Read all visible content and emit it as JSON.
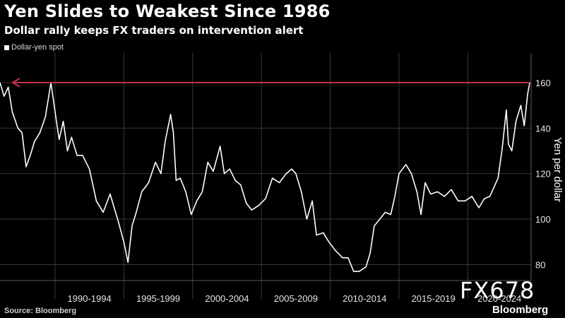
{
  "header": {
    "title": "Yen Slides to Weakest Since 1986",
    "subtitle": "Dollar rally keeps FX traders on intervention alert"
  },
  "footer": {
    "source": "Source: Bloomberg",
    "brand": "Bloomberg",
    "watermark": "FX678"
  },
  "colors": {
    "background": "#000000",
    "line": "#ffffff",
    "grid": "#3a3a3a",
    "reference_line": "#c8324a",
    "text": "#ffffff"
  },
  "chart_data": {
    "type": "line",
    "title": "Yen Slides to Weakest Since 1986",
    "subtitle": "Dollar rally keeps FX traders on intervention alert",
    "ylabel": "Yen per dollar",
    "xlabel": "",
    "ylim": [
      73,
      173
    ],
    "xlim": [
      1986.0,
      2024.6
    ],
    "yticks": [
      80,
      100,
      120,
      140,
      160
    ],
    "grid": true,
    "legend_position": "top-left",
    "categories": [
      "1990-1994",
      "1995-1999",
      "2000-2004",
      "2005-2009",
      "2010-2014",
      "2015-2019",
      "2020-2024"
    ],
    "category_spans": [
      [
        1990,
        1995
      ],
      [
        1995,
        2000
      ],
      [
        2000,
        2005
      ],
      [
        2005,
        2010
      ],
      [
        2010,
        2015
      ],
      [
        2015,
        2020
      ],
      [
        2020,
        2024.6
      ]
    ],
    "series": [
      {
        "name": "Dollar-yen spot",
        "x": [
          1986.0,
          1986.3,
          1986.6,
          1986.9,
          1987.3,
          1987.6,
          1987.9,
          1988.2,
          1988.5,
          1988.9,
          1989.3,
          1989.7,
          1990.1,
          1990.3,
          1990.6,
          1990.9,
          1991.2,
          1991.6,
          1992.0,
          1992.5,
          1993.0,
          1993.5,
          1994.0,
          1994.6,
          1995.0,
          1995.3,
          1995.6,
          1995.9,
          1996.3,
          1996.8,
          1997.3,
          1997.7,
          1998.0,
          1998.4,
          1998.6,
          1998.8,
          1999.1,
          1999.5,
          1999.9,
          2000.3,
          2000.7,
          2001.1,
          2001.5,
          2002.0,
          2002.3,
          2002.7,
          2003.1,
          2003.5,
          2003.9,
          2004.3,
          2004.8,
          2005.3,
          2005.8,
          2006.3,
          2006.8,
          2007.2,
          2007.5,
          2007.9,
          2008.3,
          2008.7,
          2009.0,
          2009.5,
          2009.9,
          2010.4,
          2010.9,
          2011.3,
          2011.7,
          2012.1,
          2012.6,
          2012.9,
          2013.2,
          2013.6,
          2014.0,
          2014.4,
          2014.7,
          2015.0,
          2015.5,
          2015.9,
          2016.3,
          2016.6,
          2016.9,
          2017.3,
          2017.8,
          2018.3,
          2018.8,
          2019.3,
          2019.8,
          2020.3,
          2020.8,
          2021.2,
          2021.6,
          2021.9,
          2022.2,
          2022.5,
          2022.8,
          2022.95,
          2023.2,
          2023.5,
          2023.85,
          2024.1,
          2024.35,
          2024.5
        ],
        "values": [
          160,
          154,
          158,
          147,
          140,
          138,
          123,
          128,
          134,
          138,
          145,
          160,
          143,
          135,
          143,
          130,
          136,
          128,
          128,
          122,
          108,
          103,
          111,
          99,
          90,
          81,
          97,
          103,
          112,
          116,
          125,
          120,
          134,
          146,
          138,
          117,
          118,
          112,
          102,
          108,
          112,
          125,
          121,
          132,
          120,
          122,
          117,
          115,
          107,
          104,
          106,
          109,
          118,
          116,
          120,
          122,
          120,
          112,
          100,
          108,
          93,
          94,
          90,
          86,
          83,
          83,
          77,
          77,
          79,
          85,
          97,
          100,
          103,
          102,
          110,
          120,
          124,
          120,
          112,
          102,
          116,
          111,
          112,
          110,
          113,
          108,
          108,
          110,
          105,
          109,
          110,
          114,
          118,
          131,
          148,
          133,
          130,
          143,
          150,
          141,
          155,
          160
        ]
      }
    ],
    "reference_line": {
      "y": 160,
      "x_from": 1986.0,
      "x_to": 2024.5,
      "arrow": "left"
    }
  }
}
